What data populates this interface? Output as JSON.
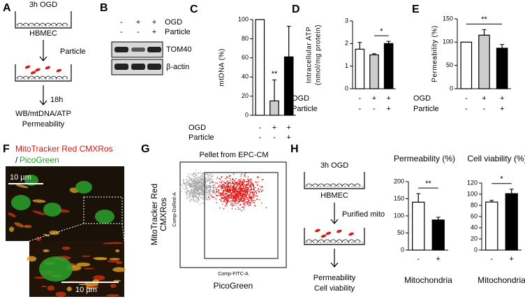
{
  "panel_letters": [
    "A",
    "B",
    "C",
    "D",
    "E",
    "F",
    "G",
    "H"
  ],
  "diagram_a": {
    "top": "3h OGD",
    "cells": "HBMEC",
    "treatment": "Particle",
    "time": "18h",
    "readouts": [
      "WB/mtDNA/ATP",
      "Permeability"
    ]
  },
  "blot": {
    "conditions": [
      {
        "name": "OGD",
        "signs": [
          "-",
          "+",
          "+"
        ]
      },
      {
        "name": "Particle",
        "signs": [
          "-",
          "-",
          "+"
        ]
      }
    ],
    "bands": [
      "TOM40",
      "β-actin"
    ]
  },
  "chart_data": [
    {
      "type": "bar",
      "ylabel": [
        "mtDNA (%)"
      ],
      "ylim": [
        0,
        100
      ],
      "yticks": [
        0,
        20,
        40,
        60,
        80,
        100
      ],
      "values": [
        100,
        15,
        61
      ],
      "errors": [
        0,
        22,
        32
      ],
      "colors": [
        "#ffffff",
        "#cccccc",
        "#000000"
      ],
      "conditions": [
        {
          "name": "OGD",
          "signs": [
            "-",
            "+",
            "+"
          ]
        },
        {
          "name": "Particle",
          "signs": [
            "-",
            "-",
            "+"
          ]
        }
      ],
      "annotations": [
        {
          "text": "**",
          "bars": [
            1
          ]
        }
      ]
    },
    {
      "type": "bar",
      "ylabel": [
        "Intracellular ATP",
        "(nmol/mg protein)"
      ],
      "ylim": [
        0,
        3
      ],
      "yticks": [
        0,
        1,
        2,
        3
      ],
      "values": [
        1.75,
        1.5,
        2.0
      ],
      "errors": [
        0.3,
        0.05,
        0.1
      ],
      "colors": [
        "#ffffff",
        "#cccccc",
        "#000000"
      ],
      "conditions": [
        {
          "name": "OGD",
          "signs": [
            "-",
            "+",
            "+"
          ]
        },
        {
          "name": "Particle",
          "signs": [
            "-",
            "-",
            "+"
          ]
        }
      ],
      "annotations": [
        {
          "text": "*",
          "bars": [
            1,
            2
          ]
        }
      ]
    },
    {
      "type": "bar",
      "ylabel": [
        "Permeability (%)"
      ],
      "ylim": [
        0,
        150
      ],
      "yticks": [
        0,
        50,
        100,
        150
      ],
      "values": [
        100,
        115,
        87
      ],
      "errors": [
        0,
        12,
        8
      ],
      "colors": [
        "#ffffff",
        "#cccccc",
        "#000000"
      ],
      "conditions": [
        {
          "name": "OGD",
          "signs": [
            "-",
            "+",
            "+"
          ]
        },
        {
          "name": "Particle",
          "signs": [
            "-",
            "-",
            "+"
          ]
        }
      ],
      "annotations": [
        {
          "text": "**",
          "bars": [
            0,
            2
          ]
        }
      ]
    },
    {
      "type": "bar",
      "title": "Permeability (%)",
      "ylim": [
        0,
        200
      ],
      "yticks": [
        0,
        50,
        100,
        150,
        200
      ],
      "categories": [
        "-",
        "+"
      ],
      "xlabel": "Mitochondria",
      "values": [
        140,
        88
      ],
      "errors": [
        25,
        8
      ],
      "colors": [
        "#ffffff",
        "#000000"
      ],
      "annotations": [
        {
          "text": "**",
          "bars": [
            0,
            1
          ]
        }
      ]
    },
    {
      "type": "bar",
      "title": "Cell viability (%)",
      "ylim": [
        0,
        120
      ],
      "yticks": [
        0,
        20,
        40,
        60,
        80,
        100,
        120
      ],
      "categories": [
        "-",
        "+"
      ],
      "xlabel": "Mitochondria",
      "values": [
        86,
        101
      ],
      "errors": [
        3,
        8
      ],
      "colors": [
        "#ffffff",
        "#000000"
      ],
      "annotations": [
        {
          "text": "*",
          "bars": [
            0,
            1
          ]
        }
      ]
    }
  ],
  "micrograph": {
    "stain_red": "MitoTracker Red CMXRos",
    "separator": "/",
    "stain_green": "PicoGreen",
    "scale_bars": [
      "10 μm",
      "10 μm"
    ]
  },
  "cytometry": {
    "title": "Pellet from EPC-CM",
    "ylabel": [
      "MitoTracker Red",
      "CMXRos"
    ],
    "y_channel": "Comp-DsRed-A",
    "x_channel": "Comp-FITC-A",
    "xlabel": "PicoGreen"
  },
  "diagram_h": {
    "top": "3h OGD",
    "cells": "HBMEC",
    "treatment": "Purified mito",
    "readouts": [
      "Permeability",
      "Cell viability"
    ]
  }
}
